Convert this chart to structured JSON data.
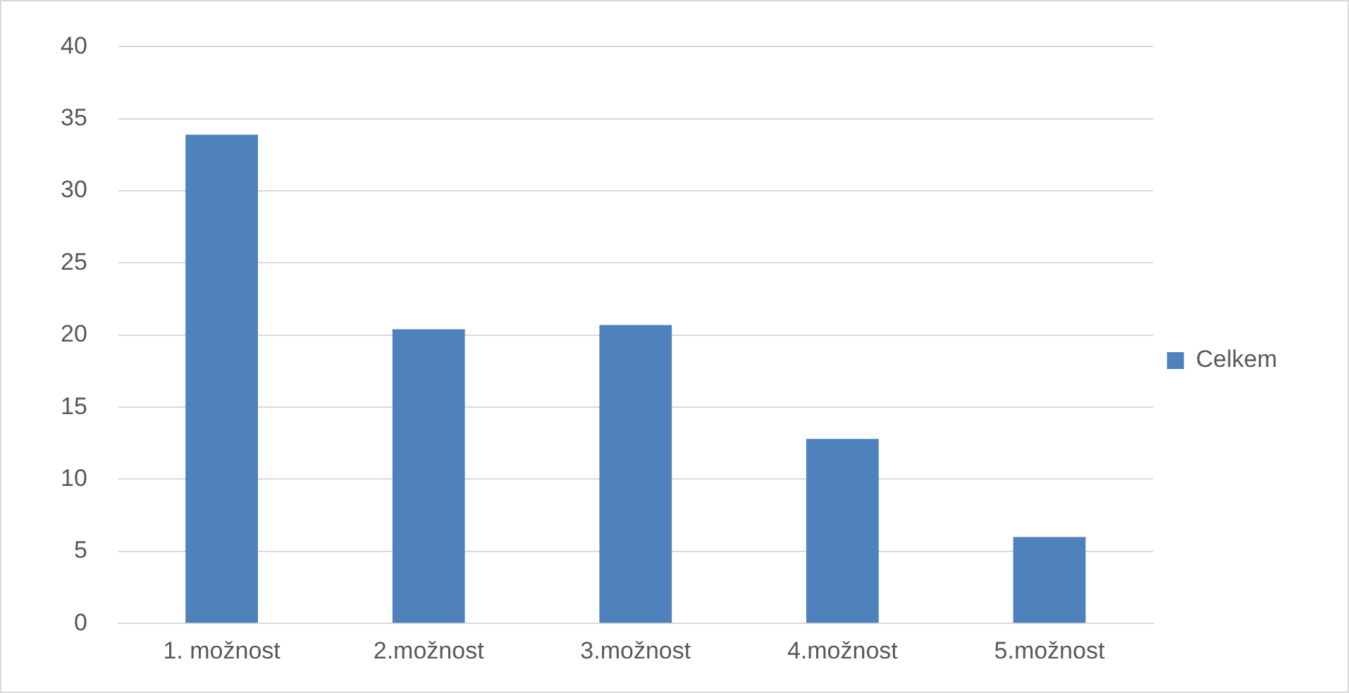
{
  "chart_data": {
    "type": "bar",
    "categories": [
      "1. možnost",
      "2.možnost",
      "3.možnost",
      "4.možnost",
      "5.možnost"
    ],
    "series": [
      {
        "name": "Celkem",
        "color": "#4f81bd",
        "values": [
          33.9,
          20.4,
          20.7,
          12.8,
          6.0
        ]
      }
    ],
    "ylim": [
      0,
      40
    ],
    "yticks": [
      0,
      5,
      10,
      15,
      20,
      25,
      30,
      35,
      40
    ],
    "grid": "y",
    "legend": "right"
  }
}
